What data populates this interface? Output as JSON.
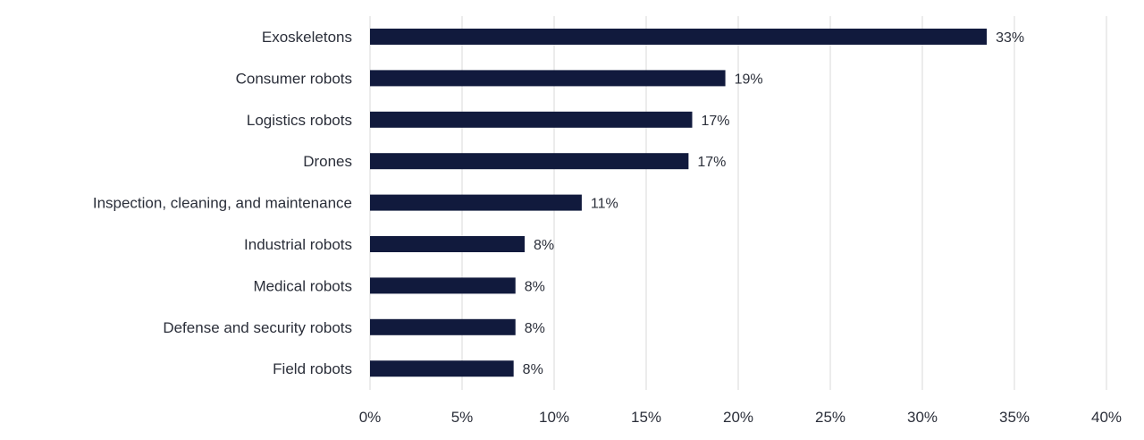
{
  "chart_data": {
    "type": "bar",
    "orientation": "horizontal",
    "categories": [
      "Exoskeletons",
      "Consumer robots",
      "Logistics robots",
      "Drones",
      "Inspection, cleaning, and maintenance",
      "Industrial robots",
      "Medical robots",
      "Defense and security robots",
      "Field robots"
    ],
    "values": [
      33.5,
      19.3,
      17.5,
      17.3,
      11.5,
      8.4,
      7.9,
      7.9,
      7.8
    ],
    "data_labels": [
      "33%",
      "19%",
      "17%",
      "17%",
      "11%",
      "8%",
      "8%",
      "8%",
      "8%"
    ],
    "xlim": [
      0,
      40
    ],
    "xticks": [
      "0%",
      "5%",
      "10%",
      "15%",
      "20%",
      "25%",
      "30%",
      "35%",
      "40%"
    ],
    "grid": "vertical",
    "legend": "none",
    "colors": {
      "bar": "#111a3d",
      "grid": "#d9d9d9",
      "text": "#2b2f3a"
    }
  }
}
